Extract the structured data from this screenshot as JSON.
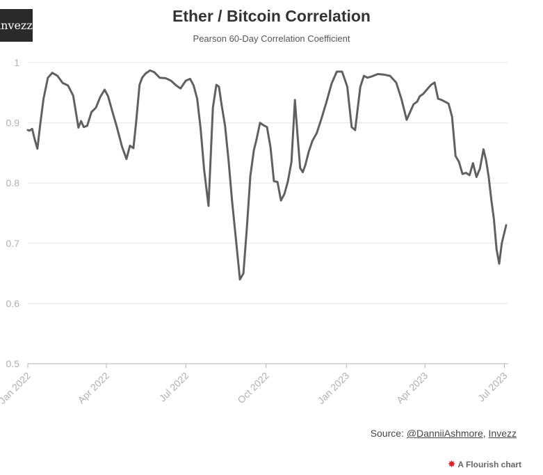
{
  "header": {
    "logo_text": "invezz",
    "title": "Ether / Bitcoin Correlation",
    "subtitle": "Pearson 60-Day Correlation Coefficient"
  },
  "footer": {
    "source_prefix": "Source: ",
    "source_author": "@DanniiAshmore",
    "source_sep": ", ",
    "source_org": "Invezz",
    "flourish_label": "A Flourish chart"
  },
  "colors": {
    "line": "#606060",
    "grid": "#e6e6e6",
    "axis": "#b0b0b0",
    "flourish_accent": "#d9262c"
  },
  "chart_data": {
    "type": "line",
    "title": "Ether / Bitcoin Correlation",
    "subtitle": "Pearson 60-Day Correlation Coefficient",
    "xlabel": "",
    "ylabel": "",
    "ylim": [
      0.5,
      1
    ],
    "yticks": [
      "0.5",
      "0.6",
      "0.7",
      "0.8",
      "0.9",
      "1"
    ],
    "xlim": [
      "2022-01-01",
      "2023-07-03"
    ],
    "xticks": [
      {
        "date": "2022-01-01",
        "label": "Jan 2022"
      },
      {
        "date": "2022-04-01",
        "label": "Apr 2022"
      },
      {
        "date": "2022-07-01",
        "label": "Jul 2022"
      },
      {
        "date": "2022-10-01",
        "label": "Oct 2022"
      },
      {
        "date": "2023-01-01",
        "label": "Jan 2023"
      },
      {
        "date": "2023-04-01",
        "label": "Apr 2023"
      },
      {
        "date": "2023-07-01",
        "label": "Jul 2023"
      }
    ],
    "grid": true,
    "series": [
      {
        "x": [
          "2022-01-01",
          "2022-01-03",
          "2022-01-06",
          "2022-01-09",
          "2022-01-12",
          "2022-01-15",
          "2022-01-19",
          "2022-01-24",
          "2022-01-29",
          "2022-02-04",
          "2022-02-10",
          "2022-02-16",
          "2022-02-22",
          "2022-02-28",
          "2022-03-03",
          "2022-03-06",
          "2022-03-10",
          "2022-03-15",
          "2022-03-20",
          "2022-03-25",
          "2022-03-30",
          "2022-04-03",
          "2022-04-08",
          "2022-04-13",
          "2022-04-19",
          "2022-04-24",
          "2022-04-28",
          "2022-05-02",
          "2022-05-05",
          "2022-05-09",
          "2022-05-12",
          "2022-05-16",
          "2022-05-21",
          "2022-05-26",
          "2022-06-01",
          "2022-06-08",
          "2022-06-14",
          "2022-06-20",
          "2022-06-25",
          "2022-07-01",
          "2022-07-06",
          "2022-07-10",
          "2022-07-14",
          "2022-07-18",
          "2022-07-22",
          "2022-07-27",
          "2022-08-01",
          "2022-08-05",
          "2022-08-08",
          "2022-08-11",
          "2022-08-15",
          "2022-08-19",
          "2022-08-23",
          "2022-08-27",
          "2022-09-01",
          "2022-09-05",
          "2022-09-09",
          "2022-09-13",
          "2022-09-17",
          "2022-09-20",
          "2022-09-24",
          "2022-09-28",
          "2022-10-02",
          "2022-10-06",
          "2022-10-10",
          "2022-10-14",
          "2022-10-18",
          "2022-10-22",
          "2022-10-26",
          "2022-10-30",
          "2022-11-03",
          "2022-11-06",
          "2022-11-09",
          "2022-11-12",
          "2022-11-15",
          "2022-11-19",
          "2022-11-23",
          "2022-11-28",
          "2022-12-03",
          "2022-12-09",
          "2022-12-15",
          "2022-12-21",
          "2022-12-27",
          "2023-01-02",
          "2023-01-07",
          "2023-01-11",
          "2023-01-14",
          "2023-01-17",
          "2023-01-21",
          "2023-01-25",
          "2023-01-30",
          "2023-02-06",
          "2023-02-13",
          "2023-02-20",
          "2023-02-27",
          "2023-03-05",
          "2023-03-11",
          "2023-03-15",
          "2023-03-19",
          "2023-03-23",
          "2023-03-26",
          "2023-03-30",
          "2023-04-03",
          "2023-04-08",
          "2023-04-12",
          "2023-04-16",
          "2023-04-20",
          "2023-04-24",
          "2023-04-28",
          "2023-05-02",
          "2023-05-06",
          "2023-05-10",
          "2023-05-14",
          "2023-05-18",
          "2023-05-22",
          "2023-05-26",
          "2023-05-30",
          "2023-06-03",
          "2023-06-07",
          "2023-06-10",
          "2023-06-13",
          "2023-06-16",
          "2023-06-19",
          "2023-06-22",
          "2023-06-25",
          "2023-06-28",
          "2023-07-01",
          "2023-07-03"
        ],
        "y": [
          0.888,
          0.887,
          0.89,
          0.872,
          0.857,
          0.895,
          0.94,
          0.975,
          0.983,
          0.978,
          0.966,
          0.962,
          0.945,
          0.892,
          0.903,
          0.893,
          0.895,
          0.918,
          0.925,
          0.943,
          0.955,
          0.944,
          0.918,
          0.893,
          0.86,
          0.84,
          0.862,
          0.858,
          0.9,
          0.963,
          0.975,
          0.982,
          0.987,
          0.984,
          0.975,
          0.974,
          0.97,
          0.962,
          0.957,
          0.97,
          0.973,
          0.962,
          0.94,
          0.89,
          0.822,
          0.762,
          0.925,
          0.963,
          0.96,
          0.93,
          0.895,
          0.837,
          0.77,
          0.713,
          0.64,
          0.65,
          0.726,
          0.812,
          0.855,
          0.872,
          0.9,
          0.896,
          0.893,
          0.86,
          0.803,
          0.802,
          0.771,
          0.782,
          0.803,
          0.835,
          0.938,
          0.88,
          0.825,
          0.818,
          0.83,
          0.853,
          0.87,
          0.883,
          0.905,
          0.934,
          0.965,
          0.985,
          0.985,
          0.96,
          0.893,
          0.888,
          0.925,
          0.96,
          0.978,
          0.975,
          0.977,
          0.981,
          0.98,
          0.978,
          0.967,
          0.94,
          0.905,
          0.918,
          0.931,
          0.935,
          0.944,
          0.948,
          0.955,
          0.963,
          0.967,
          0.94,
          0.938,
          0.935,
          0.932,
          0.91,
          0.845,
          0.835,
          0.815,
          0.817,
          0.813,
          0.833,
          0.81,
          0.824,
          0.856,
          0.838,
          0.81,
          0.772,
          0.74,
          0.69,
          0.666,
          0.7,
          0.718,
          0.73
        ]
      }
    ]
  }
}
